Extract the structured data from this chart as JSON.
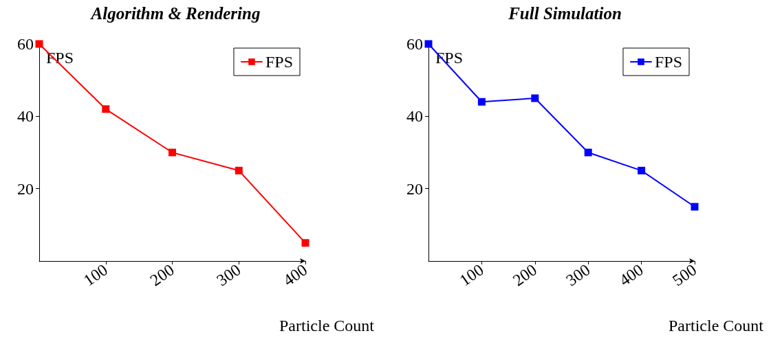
{
  "chart_data": [
    {
      "type": "line",
      "title": "Algorithm & Rendering",
      "xlabel": "Particle Count",
      "ylabel": "FPS",
      "x": [
        0,
        100,
        200,
        300,
        400
      ],
      "series": [
        {
          "name": "FPS",
          "color": "#ff0000",
          "values": [
            60,
            42,
            30,
            25,
            5
          ]
        }
      ],
      "xlim": [
        0,
        400
      ],
      "xticks": [
        100,
        200,
        300,
        400
      ],
      "ylim": [
        0,
        60
      ],
      "yticks": [
        20,
        40,
        60
      ],
      "grid": false,
      "legend": "top right",
      "marker": "square",
      "line_style": "solid"
    },
    {
      "type": "line",
      "title": "Full Simulation",
      "xlabel": "Particle Count",
      "ylabel": "FPS",
      "x": [
        0,
        100,
        200,
        300,
        400,
        500
      ],
      "series": [
        {
          "name": "FPS",
          "color": "#0000ff",
          "values": [
            60,
            44,
            45,
            30,
            25,
            15
          ]
        }
      ],
      "xlim": [
        0,
        500
      ],
      "xticks": [
        100,
        200,
        300,
        400,
        500
      ],
      "ylim": [
        0,
        60
      ],
      "yticks": [
        20,
        40,
        60
      ],
      "grid": false,
      "legend": "top right",
      "marker": "square",
      "line_style": "solid"
    }
  ]
}
